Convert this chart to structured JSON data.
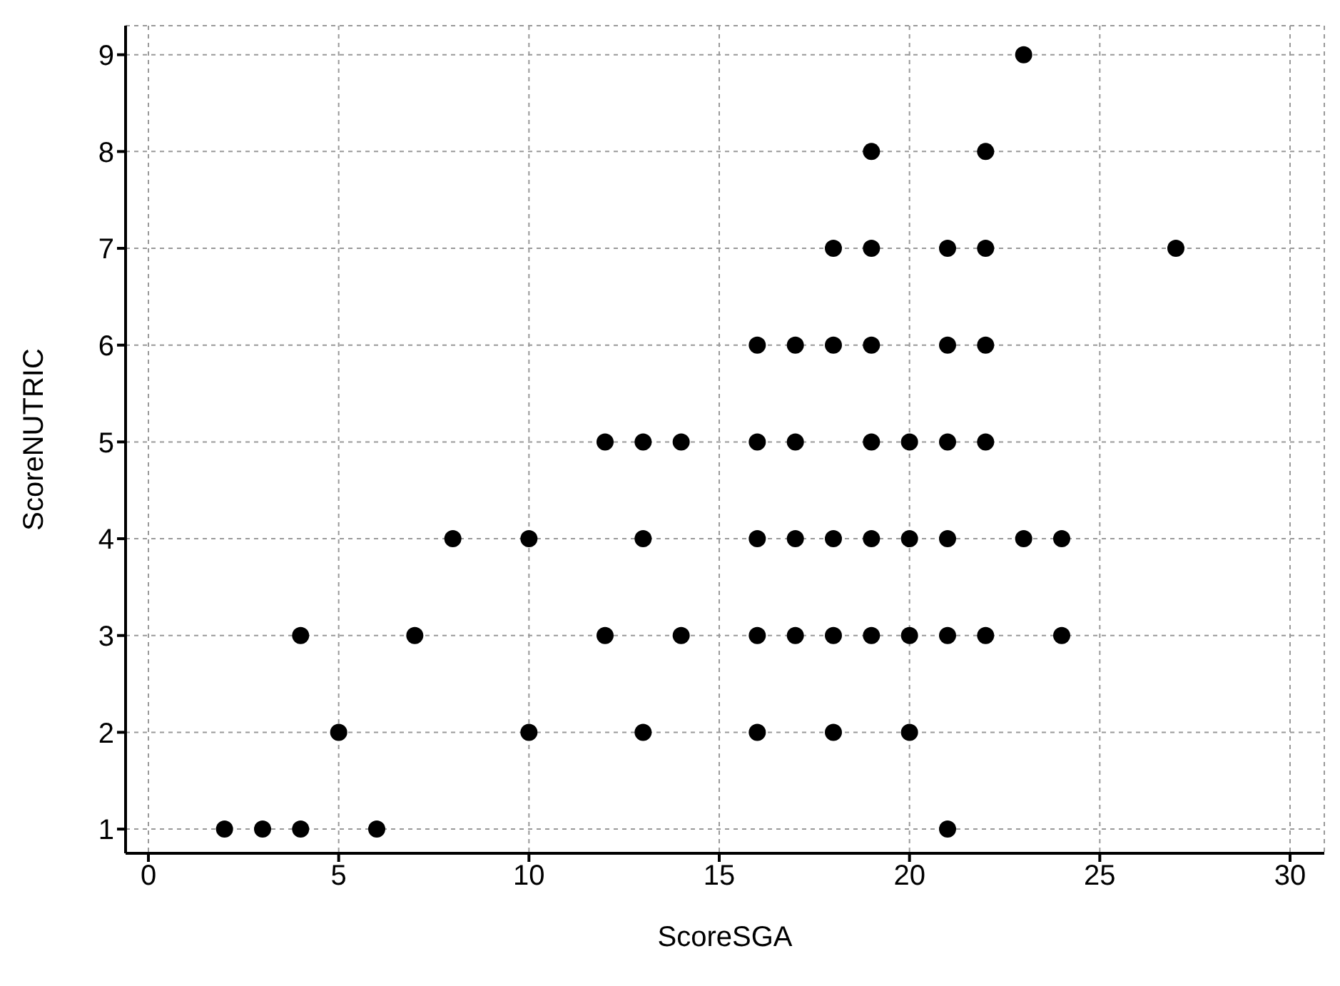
{
  "chart_data": {
    "type": "scatter",
    "xlabel": "ScoreSGA",
    "ylabel": "ScoreNUTRIC",
    "x": [
      23,
      19,
      22,
      18,
      19,
      21,
      22,
      27,
      16,
      17,
      18,
      19,
      21,
      22,
      12,
      13,
      14,
      16,
      17,
      19,
      20,
      21,
      22,
      8,
      10,
      13,
      16,
      17,
      18,
      19,
      20,
      21,
      23,
      24,
      4,
      7,
      12,
      14,
      16,
      17,
      18,
      19,
      20,
      21,
      22,
      24,
      5,
      10,
      13,
      16,
      18,
      20,
      2,
      3,
      4,
      6,
      21
    ],
    "series": [
      {
        "color": "#000000",
        "values": [
          9,
          8,
          8,
          7,
          7,
          7,
          7,
          7,
          6,
          6,
          6,
          6,
          6,
          6,
          5,
          5,
          5,
          5,
          5,
          5,
          5,
          5,
          5,
          4,
          4,
          4,
          4,
          4,
          4,
          4,
          4,
          4,
          4,
          4,
          3,
          3,
          3,
          3,
          3,
          3,
          3,
          3,
          3,
          3,
          3,
          3,
          2,
          2,
          2,
          2,
          2,
          2,
          1,
          1,
          1,
          1,
          1
        ]
      }
    ],
    "xlim": [
      -0.6,
      30.9
    ],
    "xticks": [
      0,
      5,
      10,
      15,
      20,
      25,
      30
    ],
    "ylim": [
      0.75,
      9.3
    ],
    "yticks": [
      1,
      2,
      3,
      4,
      5,
      6,
      7,
      8,
      9
    ],
    "grid": true,
    "marker": "circle"
  }
}
